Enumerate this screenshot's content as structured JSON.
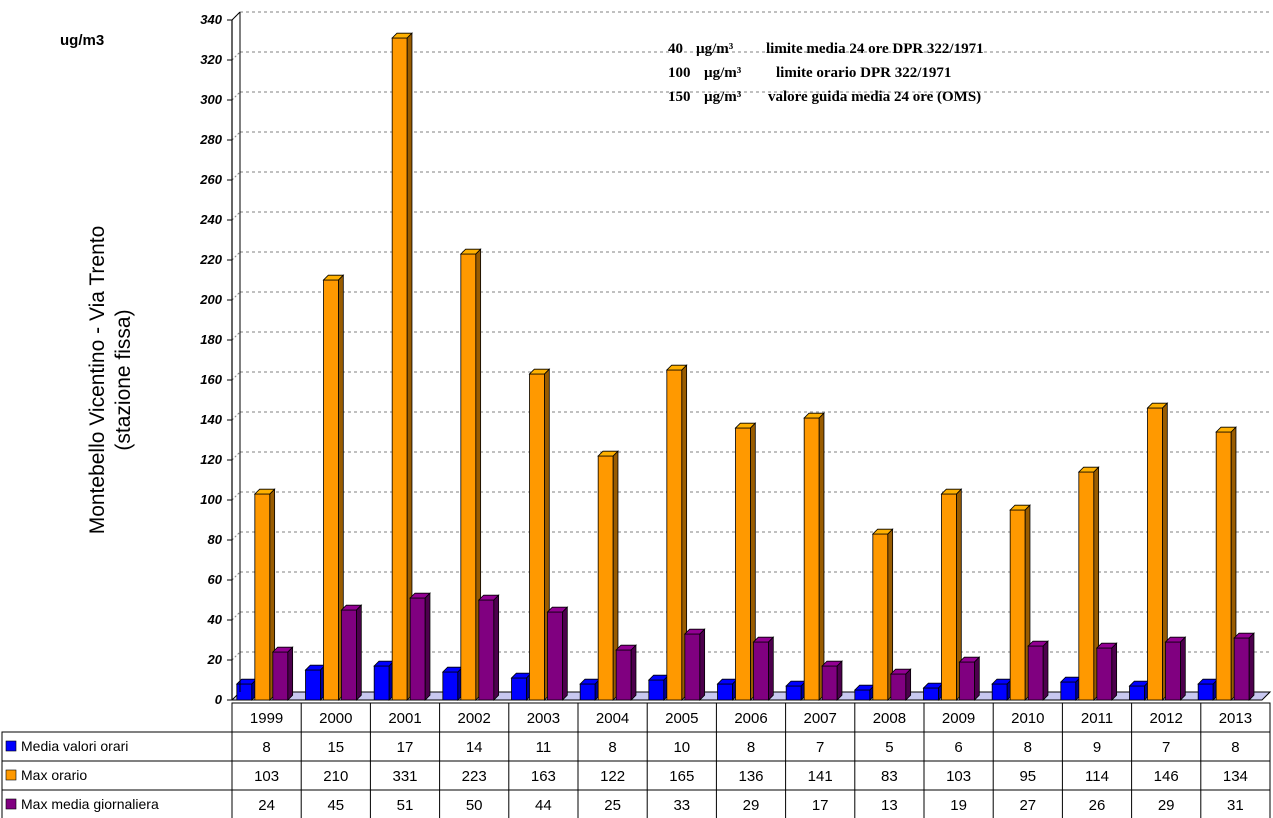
{
  "chart_data": {
    "type": "bar",
    "unit": "ug/m3",
    "ylabel_line1": "Montebello Vicentino - Via Trento",
    "ylabel_line2": "(stazione fissa)",
    "ylim": [
      0,
      340
    ],
    "yticks": [
      "0",
      "20",
      "40",
      "60",
      "80",
      "100",
      "120",
      "140",
      "160",
      "180",
      "200",
      "220",
      "240",
      "260",
      "280",
      "300",
      "320",
      "340"
    ],
    "categories": [
      "1999",
      "2000",
      "2001",
      "2002",
      "2003",
      "2004",
      "2005",
      "2006",
      "2007",
      "2008",
      "2009",
      "2010",
      "2011",
      "2012",
      "2013"
    ],
    "grid": true,
    "legend_position": "bottom-table",
    "series": [
      {
        "name": "Media valori orari",
        "color": "#0000ff",
        "values": [
          8,
          15,
          17,
          14,
          11,
          8,
          10,
          8,
          7,
          5,
          6,
          8,
          9,
          7,
          8
        ]
      },
      {
        "name": "Max orario",
        "color": "#ff9900",
        "values": [
          103,
          210,
          331,
          223,
          163,
          122,
          165,
          136,
          141,
          83,
          103,
          95,
          114,
          146,
          134
        ]
      },
      {
        "name": "Max media giornaliera",
        "color": "#800080",
        "values": [
          24,
          45,
          51,
          50,
          44,
          25,
          33,
          29,
          17,
          13,
          19,
          27,
          26,
          29,
          31
        ]
      }
    ],
    "annotations": [
      {
        "value": "40",
        "unit": "µg/m³",
        "text": "limite media 24 ore DPR 322/1971"
      },
      {
        "value": "100",
        "unit": "µg/m³",
        "text": "limite orario DPR 322/1971"
      },
      {
        "value": "150",
        "unit": "µg/m³",
        "text": "valore guida media 24 ore (OMS)"
      }
    ]
  }
}
